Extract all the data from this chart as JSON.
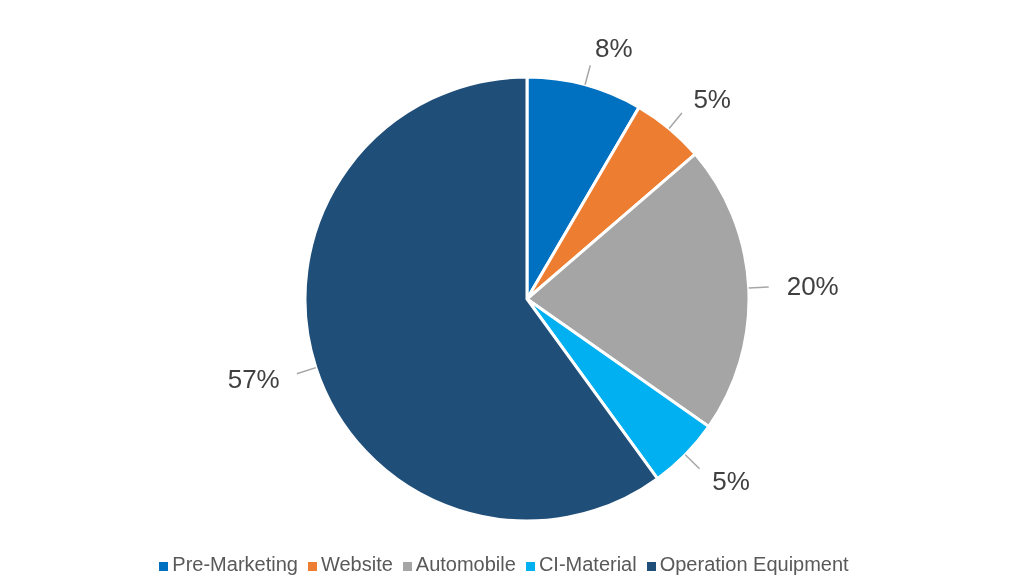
{
  "chart_data": {
    "type": "pie",
    "categories": [
      "Pre-Marketing",
      "Website",
      "Automobile",
      "CI-Material",
      "Operation Equipment"
    ],
    "values": [
      8,
      5,
      20,
      5,
      57
    ],
    "value_labels": [
      "8%",
      "5%",
      "20%",
      "5%",
      "57%"
    ],
    "colors": [
      "#0070c0",
      "#ed7d31",
      "#a5a5a5",
      "#00b0f0",
      "#1f4e79"
    ],
    "legend": "bottom"
  }
}
